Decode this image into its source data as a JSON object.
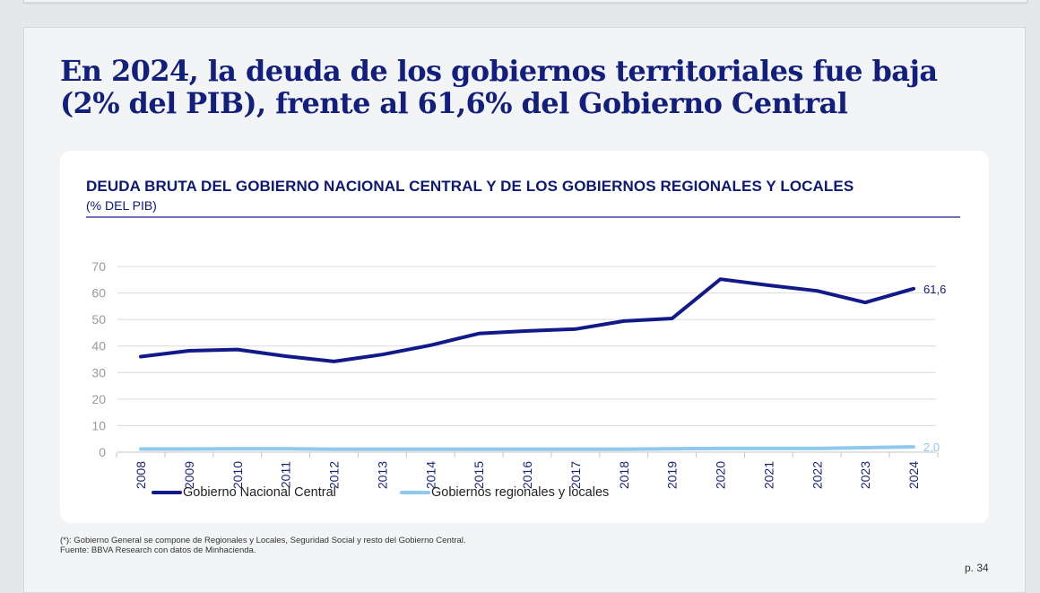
{
  "slide": {
    "headline": "En 2024, la deuda de los gobiernos territoriales fue baja (2% del PIB), frente al 61,6% del Gobierno Central",
    "footnote_1": "(*): Gobierno General se compone de Regionales y Locales, Seguridad Social y resto del Gobierno Central.",
    "footnote_2": "Fuente: BBVA Research con datos de Minhacienda.",
    "page_number": "p. 34"
  },
  "chart_data": {
    "type": "line",
    "title": "DEUDA BRUTA DEL GOBIERNO NACIONAL CENTRAL Y DE LOS GOBIERNOS REGIONALES Y LOCALES",
    "subtitle": "(% DEL PIB)",
    "x": [
      "2008",
      "2009",
      "2010",
      "2011",
      "2012",
      "2013",
      "2014",
      "2015",
      "2016",
      "2017",
      "2018",
      "2019",
      "2020",
      "2021",
      "2022",
      "2023",
      "2024"
    ],
    "y_ticks": [
      "0",
      "10",
      "20",
      "30",
      "40",
      "50",
      "60",
      "70"
    ],
    "ylim": [
      0,
      70
    ],
    "grid": true,
    "legend_position": "bottom",
    "series": [
      {
        "name": "Gobierno Nacional Central",
        "color": "#121a8a",
        "values": [
          36.0,
          38.2,
          38.7,
          36.2,
          34.2,
          36.8,
          40.3,
          44.7,
          45.7,
          46.4,
          49.4,
          50.4,
          65.2,
          62.9,
          60.8,
          56.4,
          61.6
        ],
        "end_label": "61,6"
      },
      {
        "name": "Gobiernos regionales y locales",
        "color": "#8ec9ef",
        "values": [
          1.2,
          1.2,
          1.3,
          1.3,
          1.1,
          1.1,
          1.1,
          1.1,
          1.1,
          1.1,
          1.1,
          1.3,
          1.4,
          1.4,
          1.4,
          1.7,
          2.0
        ],
        "end_label": "2,0"
      }
    ]
  }
}
